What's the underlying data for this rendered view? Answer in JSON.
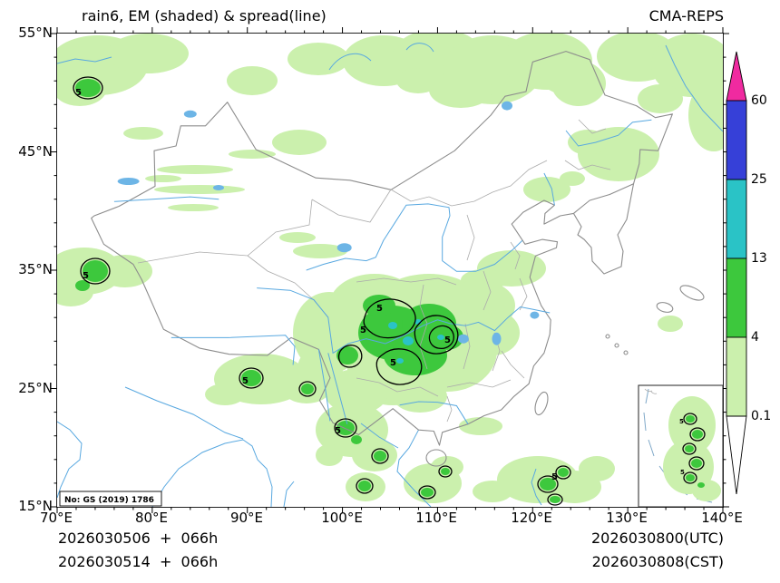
{
  "header": {
    "title": "rain6, EM (shaded) & spread(line)",
    "model": "CMA-REPS"
  },
  "axes": {
    "x_ticks": [
      "70°E",
      "80°E",
      "90°E",
      "100°E",
      "110°E",
      "120°E",
      "130°E",
      "140°E"
    ],
    "y_ticks": [
      "55°N",
      "45°N",
      "35°N",
      "25°N",
      "15°N"
    ]
  },
  "colorbar": {
    "labels": [
      "60",
      "25",
      "13",
      "4",
      "0.1"
    ]
  },
  "map": {
    "license_note": "No: GS (2019) 1786",
    "contour_label": "5"
  },
  "footer": {
    "left_line1": "2026030506  +  066h",
    "left_line2": "2026030514  +  066h",
    "right_line1": "2026030800(UTC)",
    "right_line2": "2026030808(CST)"
  },
  "chart_data": {
    "type": "heatmap",
    "subtype": "filled-contour precipitation map over China",
    "title": "rain6, EM (shaded) & spread(line)",
    "source_model": "CMA-REPS",
    "x_axis": {
      "label": "longitude",
      "unit": "°E",
      "range": [
        70,
        140
      ],
      "ticks": [
        70,
        80,
        90,
        100,
        110,
        120,
        130,
        140
      ]
    },
    "y_axis": {
      "label": "latitude",
      "unit": "°N",
      "range": [
        15,
        55
      ],
      "ticks": [
        15,
        25,
        35,
        45,
        55
      ]
    },
    "shade_variable": "rain6 ensemble mean (EM)",
    "shade_levels": [
      0.1,
      4,
      13,
      25,
      60
    ],
    "shade_colors": [
      "#ffffff",
      "#cbf0ad",
      "#3dc83d",
      "#2ac3c6",
      "#3640d8",
      "#f02aa0"
    ],
    "contour_variable": "spread",
    "contour_levels": [
      5
    ],
    "init_time_utc": "2026030506",
    "init_time_cst": "2026030514",
    "forecast_hour": "066h",
    "valid_time_utc": "2026030800(UTC)",
    "valid_time_cst": "2026030808(CST)",
    "regions_ge_4mm": [
      {
        "lon": [
          102,
          112
        ],
        "lat": [
          26,
          33
        ],
        "note": "main core Sichuan-Chongqing-Guizhou; spread=5 contour cells; small 13-25 patches"
      },
      {
        "lon": [
          72,
          75
        ],
        "lat": [
          49.5,
          51.5
        ],
        "note": "northwest corner cell with spread=5"
      },
      {
        "lon": [
          72,
          76
        ],
        "lat": [
          33.5,
          36.5
        ],
        "note": "west Tibet cell with spread=5"
      },
      {
        "lon": [
          89,
          92
        ],
        "lat": [
          24.5,
          27
        ]
      },
      {
        "lon": [
          99,
          102
        ],
        "lat": [
          20,
          22.5
        ],
        "note": "spread=5 cell"
      },
      {
        "lon": [
          101,
          104
        ],
        "lat": [
          15.5,
          20
        ]
      },
      {
        "lon": [
          107,
          112
        ],
        "lat": [
          15,
          19
        ]
      },
      {
        "lon": [
          114,
          126
        ],
        "lat": [
          15,
          20
        ],
        "note": "scattered cells with spread=5"
      },
      {
        "lon": [
          113,
          121
        ],
        "lat": [
          4,
          12
        ],
        "note": "inset: South China Sea cells with spread=5"
      }
    ],
    "regions_0p1_to_4mm": [
      {
        "lon": [
          70,
          84
        ],
        "lat": [
          49,
          55
        ]
      },
      {
        "lon": [
          88,
          101
        ],
        "lat": [
          50,
          55
        ]
      },
      {
        "lon": [
          100,
          126
        ],
        "lat": [
          47,
          55
        ]
      },
      {
        "lon": [
          127,
          140
        ],
        "lat": [
          45,
          55
        ]
      },
      {
        "lon": [
          80,
          95
        ],
        "lat": [
          40,
          45
        ],
        "note": "thin streaks"
      },
      {
        "lon": [
          70,
          80
        ],
        "lat": [
          32,
          37
        ]
      },
      {
        "lon": [
          95,
          118
        ],
        "lat": [
          23,
          35
        ],
        "note": "broad light shading around main core"
      },
      {
        "lon": [
          115,
          121
        ],
        "lat": [
          33,
          37
        ]
      },
      {
        "lon": [
          125,
          133
        ],
        "lat": [
          42,
          47
        ]
      },
      {
        "lon": [
          86,
          97
        ],
        "lat": [
          23,
          28.5
        ]
      },
      {
        "lon": [
          97,
          113
        ],
        "lat": [
          15,
          24.5
        ]
      },
      {
        "lon": [
          113,
          128
        ],
        "lat": [
          15,
          20.5
        ]
      }
    ]
  }
}
